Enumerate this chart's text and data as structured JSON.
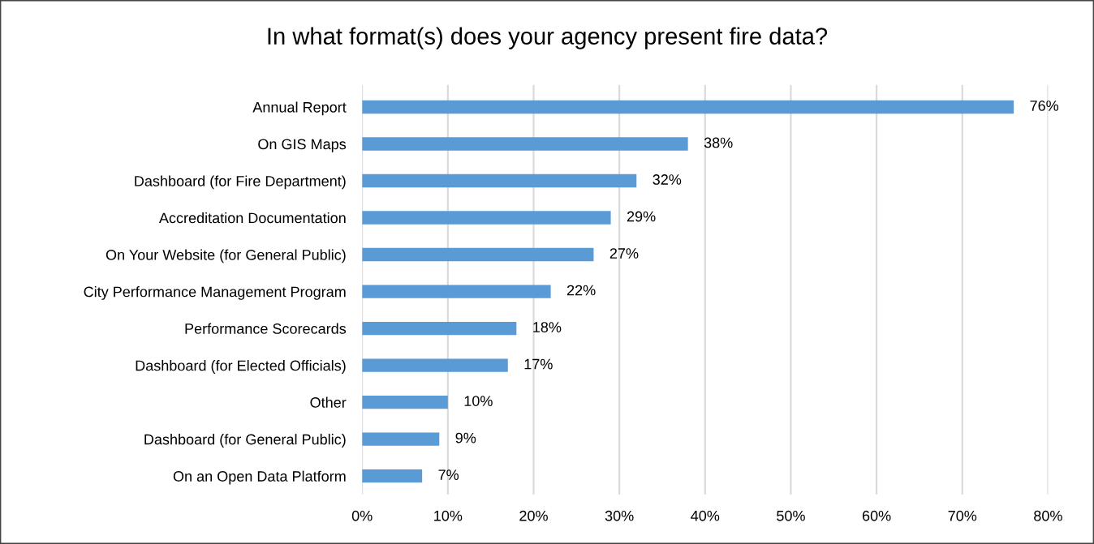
{
  "chart_data": {
    "type": "bar",
    "orientation": "horizontal",
    "title": "In what format(s) does your agency present fire data?",
    "categories": [
      "Annual Report",
      "On GIS Maps",
      "Dashboard (for Fire Department)",
      "Accreditation Documentation",
      "On Your Website (for General Public)",
      "City Performance Management Program",
      "Performance Scorecards",
      "Dashboard (for Elected Officials)",
      "Other",
      "Dashboard (for General Public)",
      "On an Open Data Platform"
    ],
    "values": [
      76,
      38,
      32,
      29,
      27,
      22,
      18,
      17,
      10,
      9,
      7
    ],
    "value_labels": [
      "76%",
      "38%",
      "32%",
      "29%",
      "27%",
      "22%",
      "18%",
      "17%",
      "10%",
      "9%",
      "7%"
    ],
    "color": "#5b9bd5",
    "xlim": [
      0,
      80
    ],
    "xticks": [
      {
        "value": 0,
        "label": "0%"
      },
      {
        "value": 10,
        "label": "10%"
      },
      {
        "value": 20,
        "label": "20%"
      },
      {
        "value": 30,
        "label": "30%"
      },
      {
        "value": 40,
        "label": "40%"
      },
      {
        "value": 50,
        "label": "50%"
      },
      {
        "value": 60,
        "label": "60%"
      },
      {
        "value": 70,
        "label": "70%"
      },
      {
        "value": 80,
        "label": "80%"
      }
    ],
    "grid": "x",
    "legend": false
  }
}
